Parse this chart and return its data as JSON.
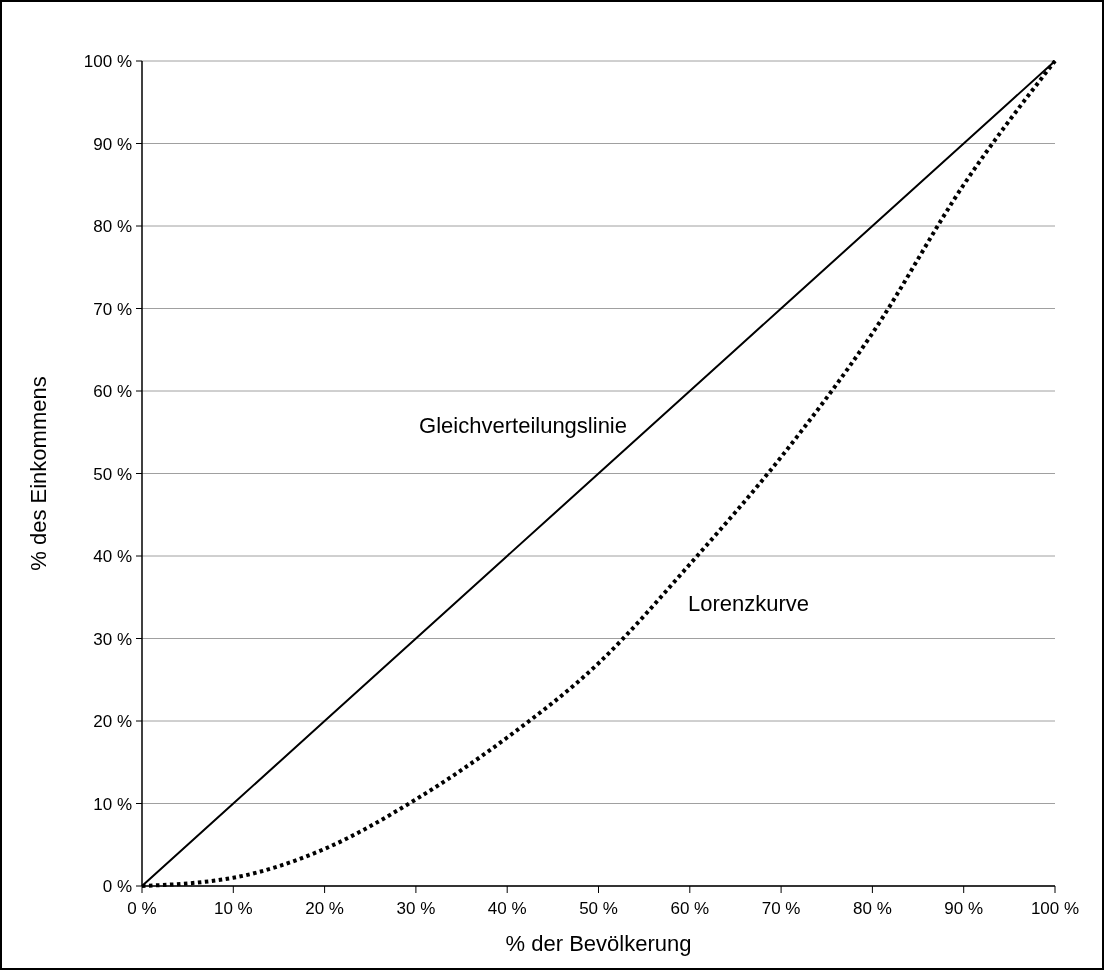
{
  "chart_data": {
    "type": "line",
    "xlabel": "% der Bevölkerung",
    "ylabel": "% des Einkommens",
    "x": [
      0,
      10,
      20,
      30,
      40,
      50,
      60,
      70,
      80,
      90,
      100
    ],
    "series": [
      {
        "name": "Gleichverteilungslinie",
        "color": "#000000",
        "line_style": "solid",
        "values": [
          0,
          10,
          20,
          30,
          40,
          50,
          60,
          70,
          80,
          90,
          100
        ]
      },
      {
        "name": "Lorenzkurve",
        "color": "#000000",
        "line_style": "dotted",
        "values": [
          0,
          1,
          4.5,
          10.5,
          18,
          27,
          39,
          52,
          67,
          85,
          100
        ]
      }
    ],
    "xlim": [
      0,
      100
    ],
    "ylim": [
      0,
      100
    ],
    "xticks": [
      {
        "value": 0,
        "label": "0 %"
      },
      {
        "value": 10,
        "label": "10 %"
      },
      {
        "value": 20,
        "label": "20 %"
      },
      {
        "value": 30,
        "label": "30 %"
      },
      {
        "value": 40,
        "label": "40 %"
      },
      {
        "value": 50,
        "label": "50 %"
      },
      {
        "value": 60,
        "label": "60 %"
      },
      {
        "value": 70,
        "label": "70 %"
      },
      {
        "value": 80,
        "label": "80 %"
      },
      {
        "value": 90,
        "label": "90 %"
      },
      {
        "value": 100,
        "label": "100 %"
      }
    ],
    "yticks": [
      {
        "value": 0,
        "label": "0 %"
      },
      {
        "value": 10,
        "label": "10 %"
      },
      {
        "value": 20,
        "label": "20 %"
      },
      {
        "value": 30,
        "label": "30 %"
      },
      {
        "value": 40,
        "label": "40 %"
      },
      {
        "value": 50,
        "label": "50 %"
      },
      {
        "value": 60,
        "label": "60 %"
      },
      {
        "value": 70,
        "label": "70 %"
      },
      {
        "value": 80,
        "label": "80 %"
      },
      {
        "value": 90,
        "label": "90 %"
      },
      {
        "value": 100,
        "label": "100 %"
      }
    ],
    "grid": "y",
    "marker": "none"
  }
}
